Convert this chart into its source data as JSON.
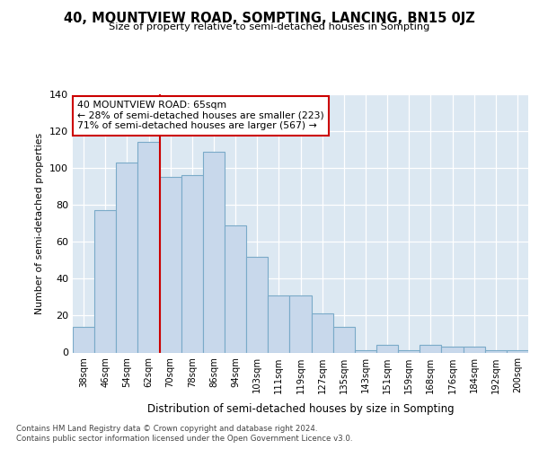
{
  "title1": "40, MOUNTVIEW ROAD, SOMPTING, LANCING, BN15 0JZ",
  "title2": "Size of property relative to semi-detached houses in Sompting",
  "xlabel": "Distribution of semi-detached houses by size in Sompting",
  "ylabel": "Number of semi-detached properties",
  "categories": [
    "38sqm",
    "46sqm",
    "54sqm",
    "62sqm",
    "70sqm",
    "78sqm",
    "86sqm",
    "94sqm",
    "103sqm",
    "111sqm",
    "119sqm",
    "127sqm",
    "135sqm",
    "143sqm",
    "151sqm",
    "159sqm",
    "168sqm",
    "176sqm",
    "184sqm",
    "192sqm",
    "200sqm"
  ],
  "values": [
    14,
    77,
    103,
    114,
    95,
    96,
    109,
    69,
    52,
    31,
    31,
    21,
    14,
    1,
    4,
    1,
    4,
    3,
    3,
    1,
    1
  ],
  "bar_color": "#c8d8eb",
  "bar_edge_color": "#7aaac8",
  "bar_width": 1.0,
  "vline_color": "#cc0000",
  "annotation_text": "40 MOUNTVIEW ROAD: 65sqm\n← 28% of semi-detached houses are smaller (223)\n71% of semi-detached houses are larger (567) →",
  "annotation_box_color": "#ffffff",
  "annotation_box_edge": "#cc0000",
  "ylim": [
    0,
    140
  ],
  "yticks": [
    0,
    20,
    40,
    60,
    80,
    100,
    120,
    140
  ],
  "footer1": "Contains HM Land Registry data © Crown copyright and database right 2024.",
  "footer2": "Contains public sector information licensed under the Open Government Licence v3.0.",
  "bg_color": "#ffffff",
  "plot_bg_color": "#dce8f2"
}
